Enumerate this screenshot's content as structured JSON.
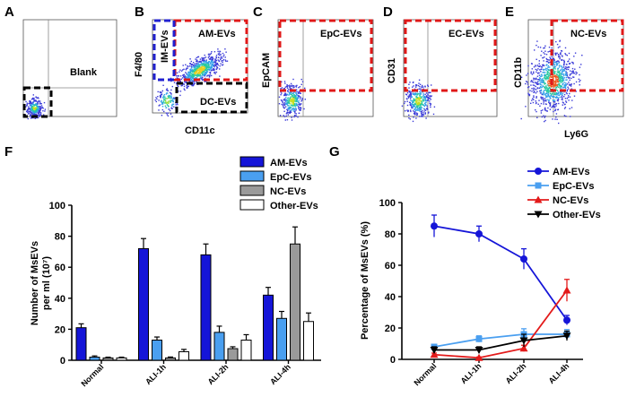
{
  "panels": {
    "A": {
      "letter": "A",
      "gates": [
        {
          "label": "Blank"
        }
      ],
      "xlabel": "",
      "ylabel": ""
    },
    "B": {
      "letter": "B",
      "gates": [
        {
          "label": "AM-EVs"
        },
        {
          "label": "IM-EVs"
        },
        {
          "label": "DC-EVs"
        }
      ],
      "xlabel": "CD11c",
      "ylabel": "F4/80"
    },
    "C": {
      "letter": "C",
      "gates": [
        {
          "label": "EpC-EVs"
        }
      ],
      "xlabel": "",
      "ylabel": "EpCAM"
    },
    "D": {
      "letter": "D",
      "gates": [
        {
          "label": "EC-EVs"
        }
      ],
      "xlabel": "",
      "ylabel": "CD31"
    },
    "E": {
      "letter": "E",
      "gates": [
        {
          "label": "NC-EVs"
        }
      ],
      "xlabel": "Ly6G",
      "ylabel": "CD11b"
    },
    "F": {
      "letter": "F"
    },
    "G": {
      "letter": "G"
    }
  },
  "colors": {
    "am": "#1515d8",
    "epc": "#4a9ff0",
    "nc": "#9a9a9a",
    "other": "#ffffff",
    "line_am": "#1515d8",
    "line_epc": "#4a9ff0",
    "line_nc": "#e31a1a",
    "line_other": "#000000",
    "gate_red": "#e01818",
    "gate_blue": "#2020d0",
    "gate_black": "#000000"
  },
  "chart_data": [
    {
      "id": "F",
      "type": "bar",
      "title": "",
      "ylabel": "Number of MsEVs per ml (10⁷)",
      "xlabel": "",
      "ylim": [
        0,
        100
      ],
      "yticks": [
        "0",
        "20",
        "40",
        "60",
        "80",
        "100"
      ],
      "categories": [
        "Normal",
        "ALI-1h",
        "ALI-2h",
        "ALI-4h"
      ],
      "legend_position": "top",
      "series": [
        {
          "name": "AM-EVs",
          "values": [
            21,
            72,
            68,
            42
          ],
          "errors": [
            2.5,
            6.5,
            7,
            5
          ]
        },
        {
          "name": "EpC-EVs",
          "values": [
            2,
            13,
            18,
            27
          ],
          "errors": [
            0.8,
            2,
            4,
            4.5
          ]
        },
        {
          "name": "NC-EVs",
          "values": [
            1.5,
            1.5,
            7.5,
            75
          ],
          "errors": [
            0.5,
            0.6,
            1.2,
            11
          ]
        },
        {
          "name": "Other-EVs",
          "values": [
            1.5,
            5.5,
            13,
            25
          ],
          "errors": [
            0.5,
            1.5,
            3.5,
            5.5
          ]
        }
      ]
    },
    {
      "id": "G",
      "type": "line",
      "title": "",
      "ylabel": "Percentage of MsEVs (%)",
      "xlabel": "",
      "ylim": [
        0,
        100
      ],
      "yticks": [
        "0",
        "20",
        "40",
        "60",
        "80",
        "100"
      ],
      "categories": [
        "Normal",
        "ALI-1h",
        "ALI-2h",
        "ALI-4h"
      ],
      "legend_position": "top-right",
      "series": [
        {
          "name": "AM-EVs",
          "marker": "circle",
          "values": [
            85,
            80,
            64,
            25
          ],
          "errors": [
            7,
            5,
            6.5,
            3
          ]
        },
        {
          "name": "EpC-EVs",
          "marker": "square",
          "values": [
            8,
            13,
            16,
            16
          ],
          "errors": [
            1.5,
            2,
            3.5,
            3
          ]
        },
        {
          "name": "NC-EVs",
          "marker": "triangle",
          "values": [
            3,
            1,
            7,
            44
          ],
          "errors": [
            1,
            0.5,
            2,
            7
          ]
        },
        {
          "name": "Other-EVs",
          "marker": "triangle-down",
          "values": [
            6,
            6,
            12,
            15
          ],
          "errors": [
            2,
            2,
            4,
            3
          ]
        }
      ]
    }
  ]
}
